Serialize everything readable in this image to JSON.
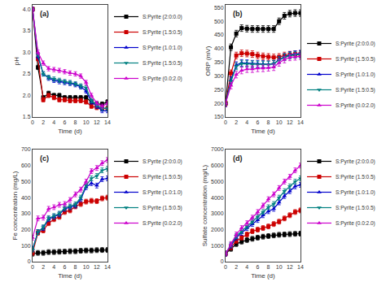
{
  "chart_data": [
    {
      "type": "line",
      "annotation": "(a)",
      "xlabel": "Time (d)",
      "ylabel": "pH",
      "x": [
        0,
        1,
        2,
        3,
        4,
        5,
        6,
        7,
        8,
        9,
        10,
        11,
        12,
        13,
        14
      ],
      "xlim": [
        0,
        14
      ],
      "xticks": [
        0,
        2,
        4,
        6,
        8,
        10,
        12,
        14
      ],
      "ylim": [
        1.5,
        4.1
      ],
      "yticks": [
        1.5,
        {
          "value": 2.0,
          "label": "2.0"
        },
        2.5,
        {
          "value": 3.0,
          "label": "3.0"
        },
        3.5,
        {
          "value": 4.0,
          "label": "4.0"
        }
      ],
      "grid": false,
      "legend": "upper right",
      "series": [
        {
          "name": "S:Pyrite (2:0:0.0)",
          "color": "#000000",
          "marker": "square",
          "error": 0.05,
          "values": [
            4.0,
            2.65,
            1.95,
            2.05,
            2.0,
            2.0,
            1.95,
            1.95,
            1.95,
            1.95,
            1.95,
            1.85,
            1.8,
            1.8,
            1.85
          ]
        },
        {
          "name": "S:Pyrite (1.5:0.5)",
          "color": "#cc0000",
          "marker": "square",
          "error": 0.05,
          "values": [
            4.0,
            2.85,
            1.9,
            2.0,
            1.95,
            1.9,
            1.9,
            1.88,
            1.88,
            1.88,
            1.85,
            1.75,
            1.72,
            1.7,
            1.7
          ]
        },
        {
          "name": "S:Pyrite (1.0:1.0)",
          "color": "#0000cc",
          "marker": "triangle-up",
          "error": 0.05,
          "values": [
            4.0,
            2.9,
            2.5,
            2.4,
            2.35,
            2.32,
            2.3,
            2.28,
            2.25,
            2.2,
            2.1,
            1.85,
            1.75,
            1.65,
            1.65
          ]
        },
        {
          "name": "S:Pyrite (1.5:0.5)",
          "color": "#008080",
          "marker": "triangle-down",
          "error": 0.05,
          "values": [
            4.0,
            2.95,
            2.5,
            2.42,
            2.38,
            2.35,
            2.32,
            2.3,
            2.27,
            2.22,
            2.18,
            1.88,
            1.78,
            1.7,
            1.7
          ]
        },
        {
          "name": "S:Pyrite (0.0:2.0)",
          "color": "#cc00cc",
          "marker": "triangle-up",
          "error": 0.05,
          "values": [
            4.0,
            3.0,
            2.75,
            2.62,
            2.6,
            2.58,
            2.55,
            2.52,
            2.5,
            2.45,
            2.3,
            2.0,
            1.82,
            1.75,
            1.82
          ]
        }
      ]
    },
    {
      "type": "line",
      "annotation": "(b)",
      "xlabel": "Time (d)",
      "ylabel": "ORP (mV)",
      "x": [
        0,
        1,
        2,
        3,
        4,
        5,
        6,
        7,
        8,
        9,
        10,
        11,
        12,
        13,
        14
      ],
      "xlim": [
        0,
        14
      ],
      "xticks": [
        0,
        2,
        4,
        6,
        8,
        10,
        12,
        14
      ],
      "ylim": [
        150,
        560
      ],
      "yticks": [
        150,
        200,
        250,
        300,
        350,
        400,
        450,
        500,
        550
      ],
      "grid": false,
      "legend": "lower right",
      "series": [
        {
          "name": "S:Pyrite (2:0:0.0)",
          "color": "#000000",
          "marker": "square",
          "error": 12,
          "values": [
            200,
            405,
            455,
            475,
            473,
            472,
            472,
            472,
            472,
            472,
            500,
            520,
            528,
            530,
            530
          ]
        },
        {
          "name": "S:Pyrite (1.5:0.5)",
          "color": "#cc0000",
          "marker": "square",
          "error": 12,
          "values": [
            200,
            310,
            375,
            383,
            382,
            380,
            375,
            372,
            370,
            368,
            370,
            375,
            378,
            380,
            380
          ]
        },
        {
          "name": "S:Pyrite (1.0:1.0)",
          "color": "#0000cc",
          "marker": "triangle-up",
          "error": 12,
          "values": [
            200,
            285,
            340,
            348,
            347,
            345,
            345,
            344,
            343,
            345,
            360,
            370,
            377,
            380,
            382
          ]
        },
        {
          "name": "S:Pyrite (1.5:0.5)",
          "color": "#008080",
          "marker": "triangle-down",
          "error": 12,
          "values": [
            200,
            280,
            335,
            345,
            344,
            343,
            342,
            342,
            342,
            345,
            358,
            368,
            374,
            377,
            378
          ]
        },
        {
          "name": "S:Pyrite (0.0:2.0)",
          "color": "#cc00cc",
          "marker": "triangle-up",
          "error": 12,
          "values": [
            200,
            265,
            305,
            320,
            325,
            325,
            328,
            328,
            330,
            332,
            348,
            360,
            368,
            370,
            372
          ]
        }
      ]
    },
    {
      "type": "line",
      "annotation": "(c)",
      "xlabel": "Time (d)",
      "ylabel": "Fe concentration (mg/L)",
      "x": [
        0,
        1,
        2,
        3,
        4,
        5,
        6,
        7,
        8,
        9,
        10,
        11,
        12,
        13,
        14
      ],
      "xlim": [
        0,
        14
      ],
      "xticks": [
        0,
        2,
        4,
        6,
        8,
        10,
        12,
        14
      ],
      "ylim": [
        0,
        700
      ],
      "yticks": [
        0,
        100,
        200,
        300,
        400,
        500,
        600,
        700
      ],
      "grid": false,
      "legend": "upper left",
      "series": [
        {
          "name": "S:Pyrite (2:0:0.0)",
          "color": "#000000",
          "marker": "square",
          "error": 15,
          "values": [
            50,
            55,
            55,
            60,
            60,
            62,
            63,
            65,
            65,
            68,
            70,
            70,
            72,
            73,
            73
          ]
        },
        {
          "name": "S:Pyrite (1.5:0.5)",
          "color": "#cc0000",
          "marker": "square",
          "error": 15,
          "values": [
            55,
            180,
            195,
            240,
            265,
            280,
            310,
            320,
            345,
            360,
            375,
            380,
            378,
            395,
            400
          ]
        },
        {
          "name": "S:Pyrite (1.0:1.0)",
          "color": "#0000cc",
          "marker": "triangle-up",
          "error": 15,
          "values": [
            80,
            185,
            210,
            265,
            280,
            295,
            330,
            340,
            350,
            390,
            465,
            490,
            475,
            515,
            520
          ]
        },
        {
          "name": "S:Pyrite (1.5:0.5)",
          "color": "#008080",
          "marker": "triangle-down",
          "error": 15,
          "values": [
            75,
            185,
            215,
            272,
            285,
            300,
            335,
            345,
            358,
            400,
            475,
            520,
            535,
            570,
            580
          ]
        },
        {
          "name": "S:Pyrite (0.0:2.0)",
          "color": "#cc00cc",
          "marker": "triangle-up",
          "error": 15,
          "values": [
            150,
            270,
            275,
            330,
            340,
            355,
            360,
            385,
            420,
            450,
            500,
            565,
            585,
            615,
            635
          ]
        }
      ]
    },
    {
      "type": "line",
      "annotation": "(d)",
      "xlabel": "Time (d)",
      "ylabel": "Sulfate concentration (mg/L)",
      "x": [
        0,
        1,
        2,
        3,
        4,
        5,
        6,
        7,
        8,
        9,
        10,
        11,
        12,
        13,
        14
      ],
      "xlim": [
        0,
        14
      ],
      "xticks": [
        0,
        2,
        4,
        6,
        8,
        10,
        12,
        14
      ],
      "ylim": [
        0,
        7000
      ],
      "yticks": [
        0,
        1000,
        2000,
        3000,
        4000,
        5000,
        6000,
        7000
      ],
      "grid": false,
      "legend": "upper left",
      "series": [
        {
          "name": "S:Pyrite (2:0:0.0)",
          "color": "#000000",
          "marker": "square",
          "error": 150,
          "values": [
            500,
            800,
            1100,
            1250,
            1350,
            1430,
            1500,
            1560,
            1600,
            1640,
            1680,
            1700,
            1720,
            1740,
            1750
          ]
        },
        {
          "name": "S:Pyrite (1.5:0.5)",
          "color": "#cc0000",
          "marker": "square",
          "error": 150,
          "values": [
            500,
            900,
            1300,
            1500,
            1700,
            1900,
            2000,
            2100,
            2200,
            2350,
            2500,
            2700,
            2900,
            3100,
            3200
          ]
        },
        {
          "name": "S:Pyrite (1.0:1.0)",
          "color": "#0000cc",
          "marker": "triangle-up",
          "error": 150,
          "values": [
            500,
            1000,
            1500,
            1800,
            2100,
            2350,
            2600,
            2900,
            3150,
            3300,
            3700,
            4100,
            4400,
            4700,
            4800
          ]
        },
        {
          "name": "S:Pyrite (1.5:0.5)",
          "color": "#008080",
          "marker": "triangle-down",
          "error": 150,
          "values": [
            500,
            1050,
            1600,
            1900,
            2200,
            2500,
            2800,
            3100,
            3400,
            3600,
            4000,
            4400,
            4700,
            5000,
            5200
          ]
        },
        {
          "name": "S:Pyrite (0.0:2.0)",
          "color": "#cc00cc",
          "marker": "triangle-up",
          "error": 150,
          "values": [
            500,
            1100,
            1700,
            2100,
            2400,
            2750,
            3100,
            3500,
            3900,
            4200,
            4600,
            5000,
            5300,
            5700,
            6000
          ]
        }
      ]
    }
  ]
}
